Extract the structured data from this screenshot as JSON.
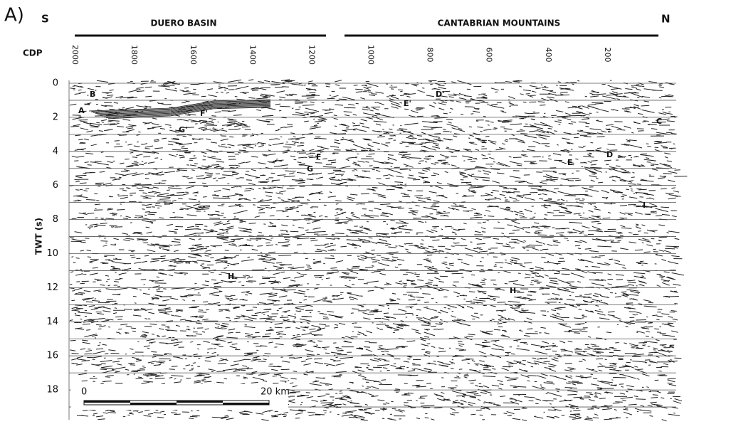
{
  "panel_label": "A)",
  "south_label": "S",
  "north_label": "N",
  "regions": [
    "DUERO BASIN",
    "CANTABRIAN MOUNTAINS"
  ],
  "cdp_axis": {
    "title": "CDP",
    "ticks": [
      2000,
      1800,
      1600,
      1400,
      1200,
      1000,
      800,
      600,
      400,
      200
    ]
  },
  "twt_axis": {
    "title": "TWT (s)",
    "ticks": [
      0,
      2,
      4,
      6,
      8,
      10,
      12,
      14,
      16,
      18
    ]
  },
  "reflectors": [
    "B",
    "A",
    "F'",
    "G'",
    "E'",
    "D'",
    "C",
    "F",
    "G",
    "D",
    "E",
    "I",
    "H",
    "H"
  ],
  "scale_bar": {
    "start": "0",
    "end": "20 km"
  }
}
